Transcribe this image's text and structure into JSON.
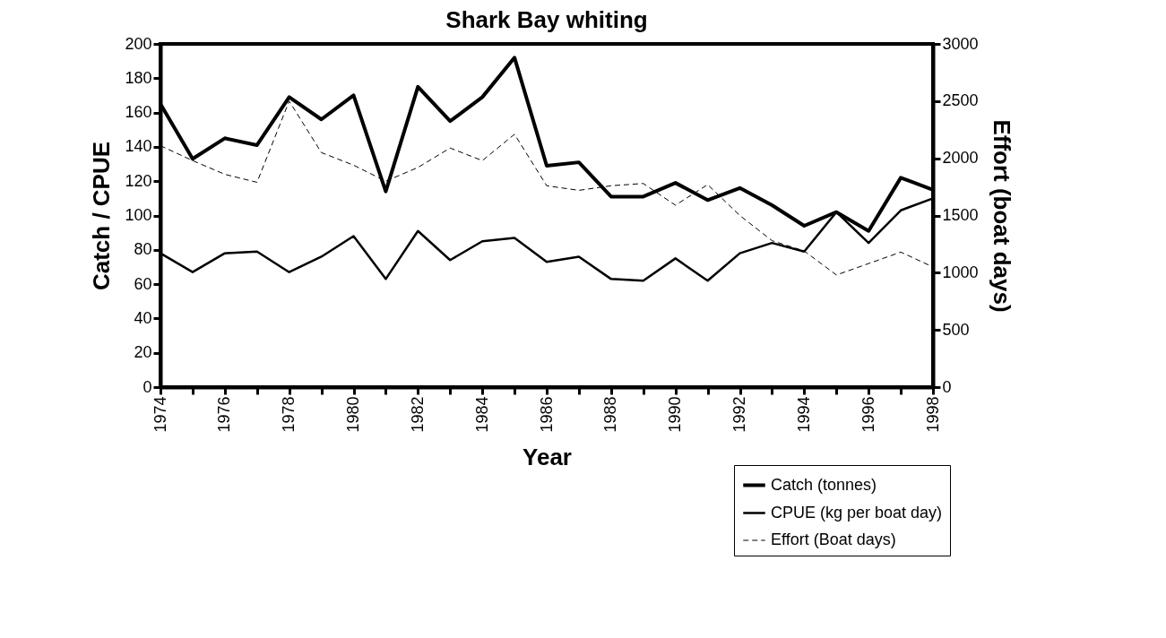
{
  "chart_data": {
    "type": "line",
    "title": "Shark Bay whiting",
    "xlabel": "Year",
    "ylabel": "Catch / CPUE",
    "y2label": "Effort (boat days)",
    "x": [
      1974,
      1975,
      1976,
      1977,
      1978,
      1979,
      1980,
      1981,
      1982,
      1983,
      1984,
      1985,
      1986,
      1987,
      1988,
      1989,
      1990,
      1991,
      1992,
      1993,
      1994,
      1995,
      1996,
      1997,
      1998
    ],
    "series": [
      {
        "name": "Catch (tonnes)",
        "color": "#000000",
        "line_style": "solid",
        "values": [
          165,
          133,
          145,
          141,
          169,
          156,
          170,
          114,
          175,
          155,
          169,
          192,
          129,
          131,
          111,
          111,
          119,
          109,
          116,
          106,
          94,
          102,
          91,
          122,
          115
        ]
      },
      {
        "name": "CPUE (kg per boat day)",
        "color": "#000000",
        "line_style": "solid",
        "values": [
          78,
          67,
          78,
          79,
          67,
          76,
          88,
          63,
          91,
          74,
          85,
          87,
          73,
          76,
          63,
          62,
          75,
          62,
          78,
          84,
          79,
          102,
          84,
          103,
          110
        ]
      },
      {
        "name": "Effort (Boat days)",
        "color": "#000000",
        "line_style": "dashed",
        "axis": "y2",
        "values": [
          2110,
          1980,
          1860,
          1790,
          2500,
          2050,
          1940,
          1800,
          1920,
          2090,
          1980,
          2210,
          1760,
          1720,
          1760,
          1780,
          1590,
          1770,
          1500,
          1280,
          1190,
          980,
          1080,
          1180,
          1050
        ]
      }
    ],
    "xlim": [
      1974,
      1998
    ],
    "xticks": [
      1974,
      {
        "value": 1975,
        "label": null
      },
      1976,
      {
        "value": 1977,
        "label": null
      },
      1978,
      {
        "value": 1979,
        "label": null
      },
      1980,
      {
        "value": 1981,
        "label": null
      },
      1982,
      {
        "value": 1983,
        "label": null
      },
      1984,
      {
        "value": 1985,
        "label": null
      },
      1986,
      {
        "value": 1987,
        "label": null
      },
      1988,
      {
        "value": 1989,
        "label": null
      },
      1990,
      {
        "value": 1991,
        "label": null
      },
      1992,
      {
        "value": 1993,
        "label": null
      },
      1994,
      {
        "value": 1995,
        "label": null
      },
      1996,
      {
        "value": 1997,
        "label": null
      },
      1998
    ],
    "ylim": [
      0,
      200
    ],
    "yticks": [
      0,
      20,
      40,
      60,
      80,
      100,
      120,
      140,
      160,
      180,
      200
    ],
    "y2lim": [
      0,
      3000
    ],
    "y2ticks": [
      0,
      500,
      1000,
      1500,
      2000,
      2500,
      3000
    ],
    "grid": false,
    "legend": "bottom right",
    "marker": "none"
  }
}
